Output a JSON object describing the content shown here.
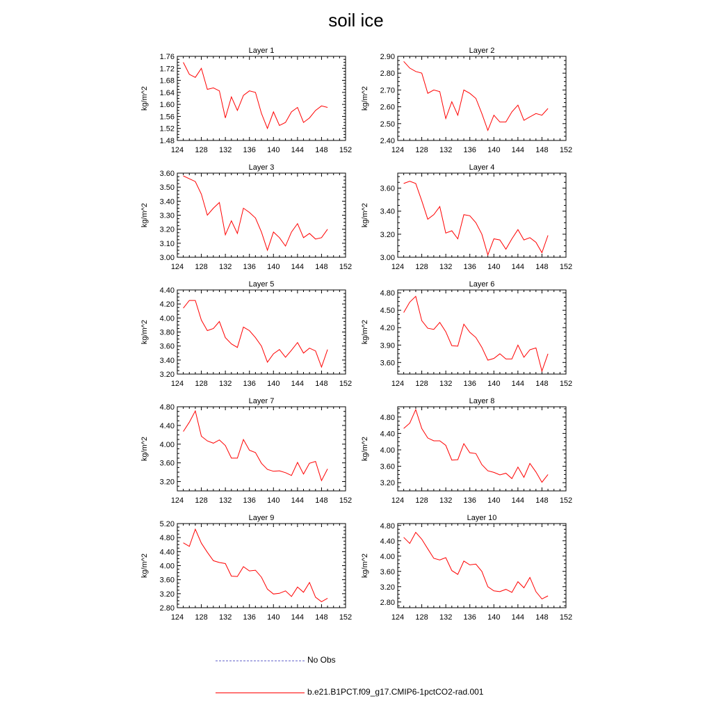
{
  "title": "soil ice",
  "legend": [
    {
      "label": "No Obs",
      "color": "#6666cc",
      "style": "dashed"
    },
    {
      "label": "b.e21.B1PCT.f09_g17.CMIP6-1pctCO2-rad.001",
      "color": "#ff0000",
      "style": "solid"
    }
  ],
  "chart_data": [
    {
      "type": "line",
      "title": "Layer 1",
      "ylabel": "kg/m^2",
      "xlim": [
        124,
        152
      ],
      "xticks": [
        124,
        128,
        132,
        136,
        140,
        144,
        148,
        152
      ],
      "ylim": [
        1.48,
        1.76
      ],
      "yticks": [
        "1.48",
        "1.52",
        "1.56",
        "1.60",
        "1.64",
        "1.68",
        "1.72",
        "1.76"
      ],
      "x": [
        125,
        126,
        127,
        128,
        129,
        130,
        131,
        132,
        133,
        134,
        135,
        136,
        137,
        138,
        139,
        140,
        141,
        142,
        143,
        144,
        145,
        146,
        147,
        148,
        149
      ],
      "series": [
        {
          "name": "b.e21.B1PCT.f09_g17.CMIP6-1pctCO2-rad.001",
          "color": "#ff0000",
          "values": [
            1.74,
            1.7,
            1.69,
            1.72,
            1.65,
            1.655,
            1.645,
            1.555,
            1.625,
            1.58,
            1.63,
            1.645,
            1.64,
            1.57,
            1.52,
            1.575,
            1.53,
            1.54,
            1.575,
            1.59,
            1.54,
            1.555,
            1.58,
            1.595,
            1.59
          ]
        }
      ]
    },
    {
      "type": "line",
      "title": "Layer 2",
      "ylabel": "kg/m^2",
      "xlim": [
        124,
        152
      ],
      "xticks": [
        124,
        128,
        132,
        136,
        140,
        144,
        148,
        152
      ],
      "ylim": [
        2.4,
        2.9
      ],
      "yticks": [
        "2.40",
        "2.50",
        "2.60",
        "2.70",
        "2.80",
        "2.90"
      ],
      "x": [
        125,
        126,
        127,
        128,
        129,
        130,
        131,
        132,
        133,
        134,
        135,
        136,
        137,
        138,
        139,
        140,
        141,
        142,
        143,
        144,
        145,
        146,
        147,
        148,
        149
      ],
      "series": [
        {
          "name": "b.e21.B1PCT.f09_g17.CMIP6-1pctCO2-rad.001",
          "color": "#ff0000",
          "values": [
            2.87,
            2.83,
            2.81,
            2.8,
            2.68,
            2.7,
            2.69,
            2.53,
            2.63,
            2.55,
            2.7,
            2.68,
            2.65,
            2.56,
            2.46,
            2.55,
            2.51,
            2.51,
            2.57,
            2.61,
            2.52,
            2.54,
            2.56,
            2.55,
            2.59
          ]
        }
      ]
    },
    {
      "type": "line",
      "title": "Layer 3",
      "ylabel": "kg/m^2",
      "xlim": [
        124,
        152
      ],
      "xticks": [
        124,
        128,
        132,
        136,
        140,
        144,
        148,
        152
      ],
      "ylim": [
        3.0,
        3.6
      ],
      "yticks": [
        "3.00",
        "3.10",
        "3.20",
        "3.30",
        "3.40",
        "3.50",
        "3.60"
      ],
      "x": [
        125,
        126,
        127,
        128,
        129,
        130,
        131,
        132,
        133,
        134,
        135,
        136,
        137,
        138,
        139,
        140,
        141,
        142,
        143,
        144,
        145,
        146,
        147,
        148,
        149
      ],
      "series": [
        {
          "name": "b.e21.B1PCT.f09_g17.CMIP6-1pctCO2-rad.001",
          "color": "#ff0000",
          "values": [
            3.58,
            3.56,
            3.54,
            3.45,
            3.3,
            3.35,
            3.39,
            3.16,
            3.26,
            3.17,
            3.35,
            3.32,
            3.28,
            3.18,
            3.05,
            3.18,
            3.14,
            3.08,
            3.18,
            3.24,
            3.14,
            3.17,
            3.13,
            3.14,
            3.2
          ]
        }
      ]
    },
    {
      "type": "line",
      "title": "Layer 4",
      "ylabel": "kg/m^2",
      "xlim": [
        124,
        152
      ],
      "xticks": [
        124,
        128,
        132,
        136,
        140,
        144,
        148,
        152
      ],
      "ylim": [
        3.0,
        3.73
      ],
      "yticks": [
        "3.00",
        "3.20",
        "3.40",
        "3.60"
      ],
      "x": [
        125,
        126,
        127,
        128,
        129,
        130,
        131,
        132,
        133,
        134,
        135,
        136,
        137,
        138,
        139,
        140,
        141,
        142,
        143,
        144,
        145,
        146,
        147,
        148,
        149
      ],
      "series": [
        {
          "name": "b.e21.B1PCT.f09_g17.CMIP6-1pctCO2-rad.001",
          "color": "#ff0000",
          "values": [
            3.64,
            3.66,
            3.64,
            3.49,
            3.33,
            3.37,
            3.44,
            3.21,
            3.23,
            3.16,
            3.37,
            3.36,
            3.3,
            3.2,
            3.02,
            3.16,
            3.15,
            3.07,
            3.16,
            3.24,
            3.15,
            3.17,
            3.13,
            3.04,
            3.19
          ]
        }
      ]
    },
    {
      "type": "line",
      "title": "Layer 5",
      "ylabel": "kg/m^2",
      "xlim": [
        124,
        152
      ],
      "xticks": [
        124,
        128,
        132,
        136,
        140,
        144,
        148,
        152
      ],
      "ylim": [
        3.2,
        4.4
      ],
      "yticks": [
        "3.20",
        "3.40",
        "3.60",
        "3.80",
        "4.00",
        "4.20",
        "4.40"
      ],
      "x": [
        125,
        126,
        127,
        128,
        129,
        130,
        131,
        132,
        133,
        134,
        135,
        136,
        137,
        138,
        139,
        140,
        141,
        142,
        143,
        144,
        145,
        146,
        147,
        148,
        149
      ],
      "series": [
        {
          "name": "b.e21.B1PCT.f09_g17.CMIP6-1pctCO2-rad.001",
          "color": "#ff0000",
          "values": [
            4.14,
            4.25,
            4.25,
            3.97,
            3.82,
            3.85,
            3.95,
            3.72,
            3.63,
            3.58,
            3.87,
            3.82,
            3.72,
            3.6,
            3.37,
            3.49,
            3.55,
            3.44,
            3.54,
            3.65,
            3.5,
            3.57,
            3.53,
            3.3,
            3.55
          ]
        }
      ]
    },
    {
      "type": "line",
      "title": "Layer 6",
      "ylabel": "kg/m^2",
      "xlim": [
        124,
        152
      ],
      "xticks": [
        124,
        128,
        132,
        136,
        140,
        144,
        148,
        152
      ],
      "ylim": [
        3.4,
        4.85
      ],
      "yticks": [
        "3.60",
        "3.90",
        "4.20",
        "4.50",
        "4.80"
      ],
      "x": [
        125,
        126,
        127,
        128,
        129,
        130,
        131,
        132,
        133,
        134,
        135,
        136,
        137,
        138,
        139,
        140,
        141,
        142,
        143,
        144,
        145,
        146,
        147,
        148,
        149
      ],
      "series": [
        {
          "name": "b.e21.B1PCT.f09_g17.CMIP6-1pctCO2-rad.001",
          "color": "#ff0000",
          "values": [
            4.46,
            4.64,
            4.74,
            4.32,
            4.19,
            4.17,
            4.29,
            4.13,
            3.89,
            3.88,
            4.26,
            4.12,
            4.03,
            3.86,
            3.64,
            3.67,
            3.75,
            3.66,
            3.66,
            3.9,
            3.69,
            3.82,
            3.85,
            3.45,
            3.75
          ]
        }
      ]
    },
    {
      "type": "line",
      "title": "Layer 7",
      "ylabel": "kg/m^2",
      "xlim": [
        124,
        152
      ],
      "xticks": [
        124,
        128,
        132,
        136,
        140,
        144,
        148,
        152
      ],
      "ylim": [
        3.0,
        4.8
      ],
      "yticks": [
        "3.20",
        "3.60",
        "4.00",
        "4.40",
        "4.80"
      ],
      "x": [
        125,
        126,
        127,
        128,
        129,
        130,
        131,
        132,
        133,
        134,
        135,
        136,
        137,
        138,
        139,
        140,
        141,
        142,
        143,
        144,
        145,
        146,
        147,
        148,
        149
      ],
      "series": [
        {
          "name": "b.e21.B1PCT.f09_g17.CMIP6-1pctCO2-rad.001",
          "color": "#ff0000",
          "values": [
            4.27,
            4.47,
            4.71,
            4.17,
            4.07,
            4.02,
            4.09,
            3.97,
            3.7,
            3.7,
            4.1,
            3.87,
            3.82,
            3.59,
            3.46,
            3.42,
            3.43,
            3.39,
            3.33,
            3.61,
            3.36,
            3.59,
            3.63,
            3.22,
            3.47
          ]
        }
      ]
    },
    {
      "type": "line",
      "title": "Layer 8",
      "ylabel": "kg/m^2",
      "xlim": [
        124,
        152
      ],
      "xticks": [
        124,
        128,
        132,
        136,
        140,
        144,
        148,
        152
      ],
      "ylim": [
        3.0,
        5.05
      ],
      "yticks": [
        "3.20",
        "3.60",
        "4.00",
        "4.40",
        "4.80"
      ],
      "x": [
        125,
        126,
        127,
        128,
        129,
        130,
        131,
        132,
        133,
        134,
        135,
        136,
        137,
        138,
        139,
        140,
        141,
        142,
        143,
        144,
        145,
        146,
        147,
        148,
        149
      ],
      "series": [
        {
          "name": "b.e21.B1PCT.f09_g17.CMIP6-1pctCO2-rad.001",
          "color": "#ff0000",
          "values": [
            4.52,
            4.65,
            4.98,
            4.52,
            4.29,
            4.22,
            4.22,
            4.11,
            3.75,
            3.76,
            4.15,
            3.93,
            3.91,
            3.64,
            3.49,
            3.45,
            3.39,
            3.43,
            3.3,
            3.58,
            3.33,
            3.67,
            3.46,
            3.21,
            3.4
          ]
        }
      ]
    },
    {
      "type": "line",
      "title": "Layer 9",
      "ylabel": "kg/m^2",
      "xlim": [
        124,
        152
      ],
      "xticks": [
        124,
        128,
        132,
        136,
        140,
        144,
        148,
        152
      ],
      "ylim": [
        2.8,
        5.2
      ],
      "yticks": [
        "2.80",
        "3.20",
        "3.60",
        "4.00",
        "4.40",
        "4.80",
        "5.20"
      ],
      "x": [
        125,
        126,
        127,
        128,
        129,
        130,
        131,
        132,
        133,
        134,
        135,
        136,
        137,
        138,
        139,
        140,
        141,
        142,
        143,
        144,
        145,
        146,
        147,
        148,
        149
      ],
      "series": [
        {
          "name": "b.e21.B1PCT.f09_g17.CMIP6-1pctCO2-rad.001",
          "color": "#ff0000",
          "values": [
            4.65,
            4.55,
            5.04,
            4.64,
            4.38,
            4.14,
            4.09,
            4.06,
            3.7,
            3.69,
            3.97,
            3.85,
            3.87,
            3.67,
            3.33,
            3.19,
            3.21,
            3.28,
            3.12,
            3.39,
            3.24,
            3.52,
            3.1,
            2.97,
            3.07
          ]
        }
      ]
    },
    {
      "type": "line",
      "title": "Layer 10",
      "ylabel": "kg/m^2",
      "xlim": [
        124,
        152
      ],
      "xticks": [
        124,
        128,
        132,
        136,
        140,
        144,
        148,
        152
      ],
      "ylim": [
        2.65,
        4.85
      ],
      "yticks": [
        "2.80",
        "3.20",
        "3.60",
        "4.00",
        "4.40",
        "4.80"
      ],
      "x": [
        125,
        126,
        127,
        128,
        129,
        130,
        131,
        132,
        133,
        134,
        135,
        136,
        137,
        138,
        139,
        140,
        141,
        142,
        143,
        144,
        145,
        146,
        147,
        148,
        149
      ],
      "series": [
        {
          "name": "b.e21.B1PCT.f09_g17.CMIP6-1pctCO2-rad.001",
          "color": "#ff0000",
          "values": [
            4.49,
            4.33,
            4.62,
            4.44,
            4.19,
            3.94,
            3.9,
            3.96,
            3.62,
            3.52,
            3.87,
            3.77,
            3.79,
            3.6,
            3.2,
            3.09,
            3.07,
            3.13,
            3.05,
            3.33,
            3.17,
            3.44,
            3.07,
            2.88,
            2.96
          ]
        }
      ]
    }
  ]
}
